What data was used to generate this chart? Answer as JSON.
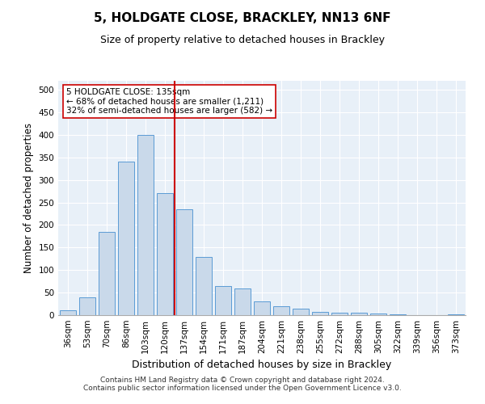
{
  "title": "5, HOLDGATE CLOSE, BRACKLEY, NN13 6NF",
  "subtitle": "Size of property relative to detached houses in Brackley",
  "xlabel": "Distribution of detached houses by size in Brackley",
  "ylabel": "Number of detached properties",
  "categories": [
    "36sqm",
    "53sqm",
    "70sqm",
    "86sqm",
    "103sqm",
    "120sqm",
    "137sqm",
    "154sqm",
    "171sqm",
    "187sqm",
    "204sqm",
    "221sqm",
    "238sqm",
    "255sqm",
    "272sqm",
    "288sqm",
    "305sqm",
    "322sqm",
    "339sqm",
    "356sqm",
    "373sqm"
  ],
  "values": [
    10,
    40,
    185,
    340,
    400,
    270,
    235,
    130,
    65,
    60,
    30,
    20,
    15,
    8,
    5,
    5,
    3,
    2,
    0,
    0,
    2
  ],
  "bar_color": "#c9d9ea",
  "bar_edge_color": "#5b9bd5",
  "vline_x_index": 6,
  "vline_color": "#cc0000",
  "annotation_text": "5 HOLDGATE CLOSE: 135sqm\n← 68% of detached houses are smaller (1,211)\n32% of semi-detached houses are larger (582) →",
  "annotation_box_color": "#ffffff",
  "annotation_box_edge_color": "#cc0000",
  "ylim": [
    0,
    520
  ],
  "yticks": [
    0,
    50,
    100,
    150,
    200,
    250,
    300,
    350,
    400,
    450,
    500
  ],
  "plot_bg_color": "#e8f0f8",
  "footer_line1": "Contains HM Land Registry data © Crown copyright and database right 2024.",
  "footer_line2": "Contains public sector information licensed under the Open Government Licence v3.0.",
  "title_fontsize": 11,
  "subtitle_fontsize": 9,
  "xlabel_fontsize": 9,
  "ylabel_fontsize": 8.5,
  "tick_fontsize": 7.5,
  "footer_fontsize": 6.5,
  "annotation_fontsize": 7.5
}
